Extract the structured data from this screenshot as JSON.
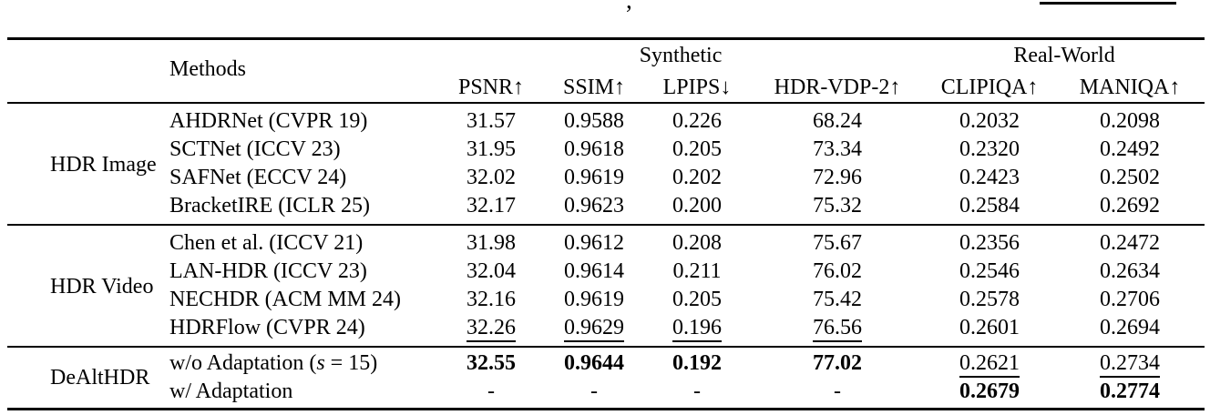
{
  "page": {
    "background": "#ffffff",
    "text_color": "#000000"
  },
  "caption_fragment": {
    "comma": ",",
    "underline_present": true
  },
  "table": {
    "headers": {
      "methods": "Methods",
      "groups": [
        {
          "label": "Synthetic",
          "span": 4
        },
        {
          "label": "Real-World",
          "span": 2
        }
      ],
      "metrics": [
        "PSNR↑",
        "SSIM↑",
        "LPIPS↓",
        "HDR-VDP-2↑",
        "CLIPIQA↑",
        "MANIQA↑"
      ]
    },
    "groups": [
      {
        "label": "HDR Image",
        "rows": [
          {
            "method": [
              {
                "t": "AHDRNet (CVPR 19)"
              }
            ],
            "values": [
              {
                "t": "31.57"
              },
              {
                "t": "0.9588"
              },
              {
                "t": "0.226"
              },
              {
                "t": "68.24"
              },
              {
                "t": "0.2032"
              },
              {
                "t": "0.2098"
              }
            ]
          },
          {
            "method": [
              {
                "t": "SCTNet (ICCV 23)"
              }
            ],
            "values": [
              {
                "t": "31.95"
              },
              {
                "t": "0.9618"
              },
              {
                "t": "0.205"
              },
              {
                "t": "73.34"
              },
              {
                "t": "0.2320"
              },
              {
                "t": "0.2492"
              }
            ]
          },
          {
            "method": [
              {
                "t": "SAFNet (ECCV 24)"
              }
            ],
            "values": [
              {
                "t": "32.02"
              },
              {
                "t": "0.9619"
              },
              {
                "t": "0.202"
              },
              {
                "t": "72.96"
              },
              {
                "t": "0.2423"
              },
              {
                "t": "0.2502"
              }
            ]
          },
          {
            "method": [
              {
                "t": "BracketIRE (ICLR 25)"
              }
            ],
            "values": [
              {
                "t": "32.17"
              },
              {
                "t": "0.9623"
              },
              {
                "t": "0.200"
              },
              {
                "t": "75.32"
              },
              {
                "t": "0.2584"
              },
              {
                "t": "0.2692"
              }
            ]
          }
        ]
      },
      {
        "label": "HDR Video",
        "rows": [
          {
            "method": [
              {
                "t": "Chen et al. (ICCV 21)"
              }
            ],
            "values": [
              {
                "t": "31.98"
              },
              {
                "t": "0.9612"
              },
              {
                "t": "0.208"
              },
              {
                "t": "75.67"
              },
              {
                "t": "0.2356"
              },
              {
                "t": "0.2472"
              }
            ]
          },
          {
            "method": [
              {
                "t": "LAN-HDR (ICCV 23)"
              }
            ],
            "values": [
              {
                "t": "32.04"
              },
              {
                "t": "0.9614"
              },
              {
                "t": "0.211"
              },
              {
                "t": "76.02"
              },
              {
                "t": "0.2546"
              },
              {
                "t": "0.2634"
              }
            ]
          },
          {
            "method": [
              {
                "t": "NECHDR (ACM MM 24)"
              }
            ],
            "values": [
              {
                "t": "32.16"
              },
              {
                "t": "0.9619"
              },
              {
                "t": "0.205"
              },
              {
                "t": "75.42"
              },
              {
                "t": "0.2578"
              },
              {
                "t": "0.2706"
              }
            ]
          },
          {
            "method": [
              {
                "t": "HDRFlow (CVPR 24)"
              }
            ],
            "values": [
              {
                "t": "32.26",
                "s": "underline"
              },
              {
                "t": "0.9629",
                "s": "underline"
              },
              {
                "t": "0.196",
                "s": "underline"
              },
              {
                "t": "76.56",
                "s": "underline"
              },
              {
                "t": "0.2601"
              },
              {
                "t": "0.2694"
              }
            ]
          }
        ]
      },
      {
        "label": "DeAltHDR",
        "rows": [
          {
            "method": [
              {
                "t": "w/o Adaptation ("
              },
              {
                "t": "s",
                "i": true
              },
              {
                "t": " = 15)"
              }
            ],
            "values": [
              {
                "t": "32.55",
                "s": "bold"
              },
              {
                "t": "0.9644",
                "s": "bold"
              },
              {
                "t": "0.192",
                "s": "bold"
              },
              {
                "t": "77.02",
                "s": "bold"
              },
              {
                "t": "0.2621",
                "s": "underline"
              },
              {
                "t": "0.2734",
                "s": "underline"
              }
            ]
          },
          {
            "method": [
              {
                "t": "w/ Adaptation"
              }
            ],
            "values": [
              {
                "t": "-"
              },
              {
                "t": "-"
              },
              {
                "t": "-"
              },
              {
                "t": "-"
              },
              {
                "t": "0.2679",
                "s": "bold"
              },
              {
                "t": "0.2774",
                "s": "bold"
              }
            ]
          }
        ]
      }
    ]
  }
}
